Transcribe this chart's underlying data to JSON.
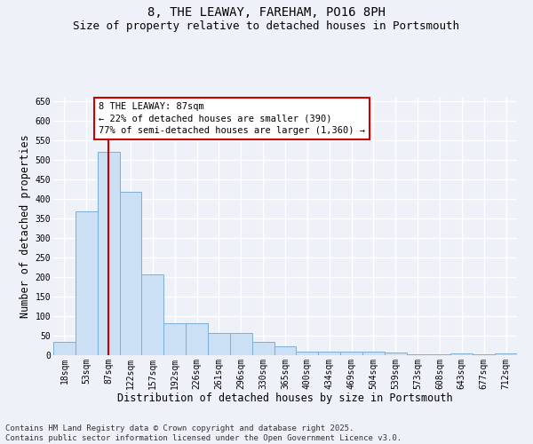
{
  "title": "8, THE LEAWAY, FAREHAM, PO16 8PH",
  "subtitle": "Size of property relative to detached houses in Portsmouth",
  "xlabel": "Distribution of detached houses by size in Portsmouth",
  "ylabel": "Number of detached properties",
  "categories": [
    "18sqm",
    "53sqm",
    "87sqm",
    "122sqm",
    "157sqm",
    "192sqm",
    "226sqm",
    "261sqm",
    "296sqm",
    "330sqm",
    "365sqm",
    "400sqm",
    "434sqm",
    "469sqm",
    "504sqm",
    "539sqm",
    "573sqm",
    "608sqm",
    "643sqm",
    "677sqm",
    "712sqm"
  ],
  "values": [
    35,
    368,
    522,
    418,
    207,
    83,
    83,
    56,
    56,
    35,
    22,
    10,
    10,
    10,
    10,
    7,
    2,
    2,
    4,
    2,
    5
  ],
  "bar_color": "#cce0f5",
  "bar_edge_color": "#7bafd4",
  "highlight_index": 2,
  "highlight_color": "#cc0000",
  "ylim": [
    0,
    660
  ],
  "yticks": [
    0,
    50,
    100,
    150,
    200,
    250,
    300,
    350,
    400,
    450,
    500,
    550,
    600,
    650
  ],
  "annotation_text": "8 THE LEAWAY: 87sqm\n← 22% of detached houses are smaller (390)\n77% of semi-detached houses are larger (1,360) →",
  "annotation_box_color": "#ffffff",
  "annotation_box_edge": "#cc0000",
  "footer_line1": "Contains HM Land Registry data © Crown copyright and database right 2025.",
  "footer_line2": "Contains public sector information licensed under the Open Government Licence v3.0.",
  "title_fontsize": 10,
  "subtitle_fontsize": 9,
  "axis_label_fontsize": 8.5,
  "tick_fontsize": 7,
  "annotation_fontsize": 7.5,
  "footer_fontsize": 6.5,
  "background_color": "#eef2f8"
}
